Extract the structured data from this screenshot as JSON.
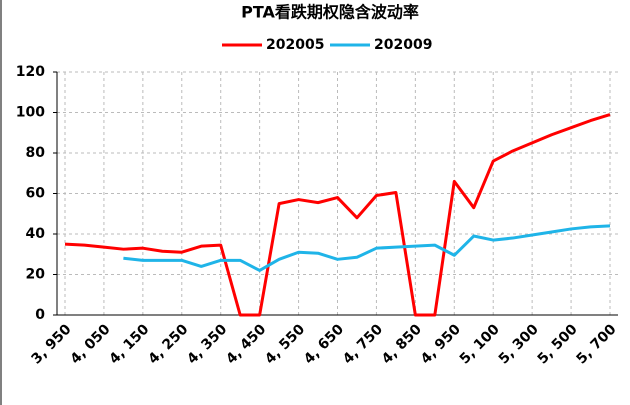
{
  "chart_data": {
    "type": "line",
    "title": "PTA看跌期权隐含波动率",
    "categories": [
      "3, 950",
      null,
      "4, 050",
      null,
      "4, 150",
      null,
      "4, 250",
      null,
      "4, 350",
      null,
      "4, 450",
      null,
      "4, 550",
      null,
      "4, 650",
      null,
      "4, 750",
      null,
      "4, 850",
      null,
      "4, 950",
      null,
      "5, 100",
      null,
      "5, 300",
      null,
      "5, 500",
      null,
      "5, 700"
    ],
    "series": [
      {
        "name": "202005",
        "color": "#ff0000",
        "values": [
          35,
          34.5,
          33.5,
          32.5,
          33,
          31.5,
          31,
          34,
          34.5,
          0,
          0,
          55,
          57,
          55.5,
          58,
          48,
          59,
          60.5,
          0,
          0,
          66,
          53,
          76,
          81,
          85,
          89,
          92.5,
          96,
          99
        ]
      },
      {
        "name": "202009",
        "color": "#1fb4e8",
        "values": [
          null,
          null,
          null,
          28,
          27,
          27,
          27,
          24,
          27,
          27,
          22,
          27.5,
          31,
          30.5,
          27.5,
          28.5,
          33,
          33.5,
          34,
          34.5,
          29.5,
          39,
          37,
          38,
          39.5,
          41,
          42.5,
          43.5,
          44
        ]
      }
    ],
    "ylim": [
      0,
      120
    ],
    "yticks": [
      0,
      20,
      40,
      60,
      80,
      100,
      120
    ],
    "grid": true,
    "legend": "top"
  }
}
